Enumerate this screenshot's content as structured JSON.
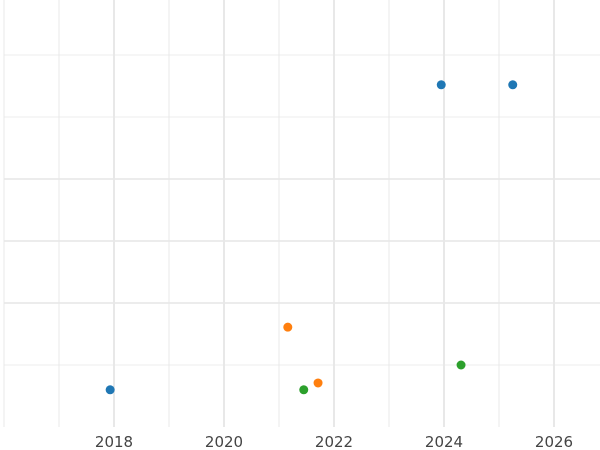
{
  "chart_data": {
    "type": "scatter",
    "title": "",
    "xlabel": "",
    "ylabel": "",
    "x_ticks": [
      "2018",
      "2020",
      "2022",
      "2024",
      "2026"
    ],
    "xlim": [
      2016,
      2026.85
    ],
    "ylim": [
      0,
      6.9
    ],
    "y_tick_labels_shown": false,
    "grid": true,
    "series": [
      {
        "color": "#1f77b4",
        "points": [
          {
            "x": 2017.93,
            "y": 0.6
          },
          {
            "x": 2023.95,
            "y": 5.52
          },
          {
            "x": 2025.25,
            "y": 5.52
          }
        ]
      },
      {
        "color": "#ff7f0e",
        "points": [
          {
            "x": 2021.16,
            "y": 1.61
          },
          {
            "x": 2021.71,
            "y": 0.71
          }
        ]
      },
      {
        "color": "#2ca02c",
        "points": [
          {
            "x": 2021.45,
            "y": 0.6
          },
          {
            "x": 2024.31,
            "y": 1.0
          }
        ]
      }
    ]
  }
}
